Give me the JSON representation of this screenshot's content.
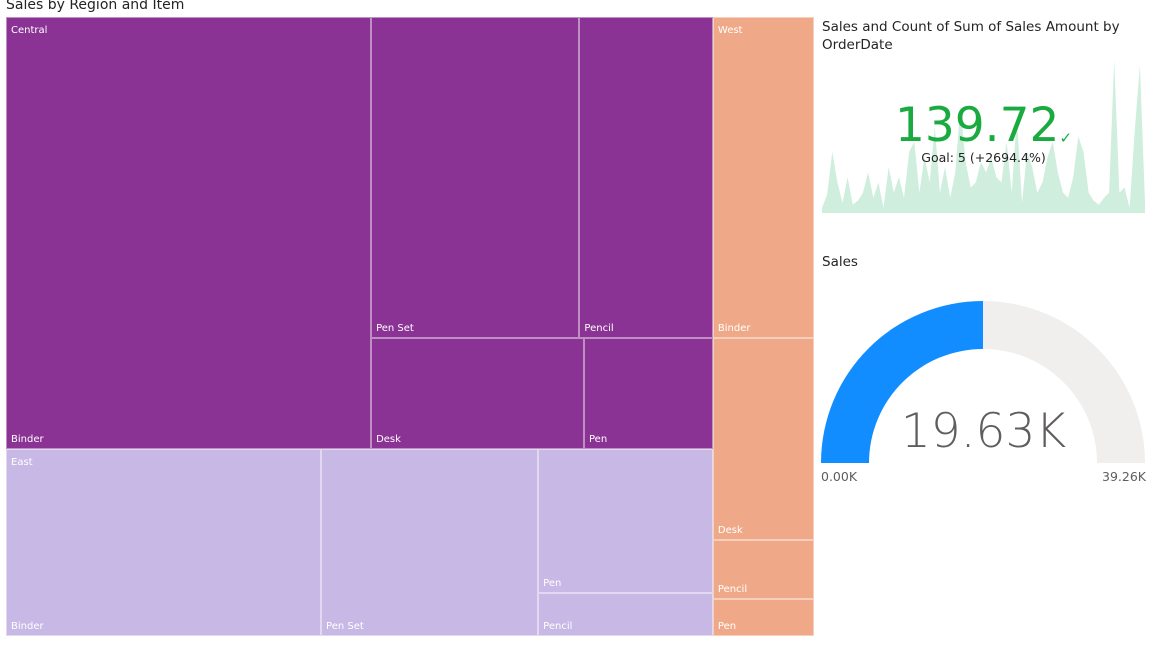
{
  "chart_data": [
    {
      "type": "treemap",
      "title": "Sales by Region and Item",
      "groups": [
        {
          "name": "Central",
          "color": "#8a3394",
          "items": [
            {
              "label": "Binder",
              "value": 6360
            },
            {
              "label": "Pen Set",
              "value": 2700
            },
            {
              "label": "Pencil",
              "value": 1730
            },
            {
              "label": "Desk",
              "value": 950
            },
            {
              "label": "Pen",
              "value": 575
            }
          ]
        },
        {
          "name": "East",
          "color": "#c8b8e6",
          "items": [
            {
              "label": "Binder",
              "value": 2380
            },
            {
              "label": "Pen Set",
              "value": 1640
            },
            {
              "label": "Pen",
              "value": 1020
            },
            {
              "label": "Pencil",
              "value": 300
            }
          ]
        },
        {
          "name": "West",
          "color": "#f0a988",
          "items": [
            {
              "label": "Binder",
              "value": 1310
            },
            {
              "label": "Desk",
              "value": 825
            },
            {
              "label": "Pencil",
              "value": 240
            },
            {
              "label": "Pen",
              "value": 150
            }
          ]
        }
      ]
    },
    {
      "type": "kpi",
      "title": "Sales and Count of Sum of Sales Amount by OrderDate",
      "value": "139.72",
      "goal_text": "Goal: 5 (+2694.4%)",
      "status_color": "#1aab40",
      "trend_color": "#cfeedd",
      "trend": [
        5,
        18,
        60,
        30,
        10,
        35,
        8,
        12,
        20,
        40,
        15,
        30,
        5,
        45,
        20,
        35,
        15,
        60,
        70,
        20,
        55,
        30,
        85,
        20,
        45,
        15,
        40,
        105,
        50,
        25,
        30,
        50,
        40,
        55,
        35,
        30,
        70,
        20,
        95,
        10,
        60,
        45,
        20,
        30,
        55,
        70,
        40,
        20,
        15,
        35,
        75,
        60,
        20,
        12,
        8,
        15,
        20,
        150,
        20,
        25,
        5,
        80,
        145,
        10
      ]
    },
    {
      "type": "gauge",
      "title": "Sales",
      "value": 19630,
      "value_label": "19.63K",
      "min": 0,
      "min_label": "0.00K",
      "max": 39260,
      "max_label": "39.26K",
      "fill_color": "#118dff",
      "track_color": "#f0efee"
    }
  ]
}
